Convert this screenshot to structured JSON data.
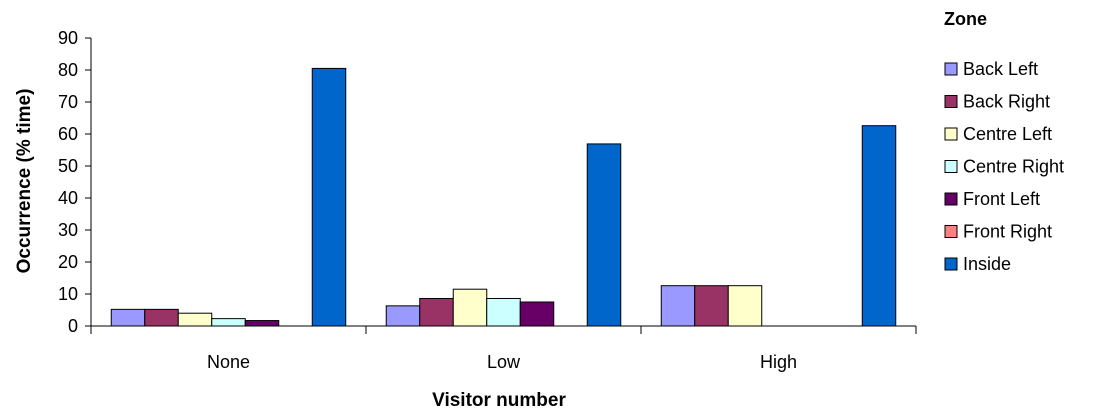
{
  "chart_data": {
    "type": "bar",
    "categories": [
      "None",
      "Low",
      "High"
    ],
    "series": [
      {
        "name": "Back Left",
        "color": "#9999ff",
        "values": [
          5.2,
          6.3,
          12.6
        ]
      },
      {
        "name": "Back Right",
        "color": "#993366",
        "values": [
          5.2,
          8.6,
          12.6
        ]
      },
      {
        "name": "Centre Left",
        "color": "#ffffcc",
        "values": [
          4.0,
          11.5,
          12.6
        ]
      },
      {
        "name": "Centre Right",
        "color": "#ccffff",
        "values": [
          2.3,
          8.6,
          0
        ]
      },
      {
        "name": "Front Left",
        "color": "#660066",
        "values": [
          1.7,
          7.5,
          0
        ]
      },
      {
        "name": "Front Right",
        "color": "#ff8080",
        "values": [
          0,
          0,
          0
        ]
      },
      {
        "name": "Inside",
        "color": "#0066cc",
        "values": [
          80.5,
          56.9,
          62.6
        ]
      }
    ],
    "title": "",
    "xlabel": "Visitor number",
    "ylabel": "Occurrence (% time)",
    "ylim": [
      0,
      90
    ],
    "yticks": [
      "0",
      "10",
      "20",
      "30",
      "40",
      "50",
      "60",
      "70",
      "80",
      "90"
    ],
    "legend_title": "Zone",
    "legend_position": "right",
    "grid": false
  }
}
